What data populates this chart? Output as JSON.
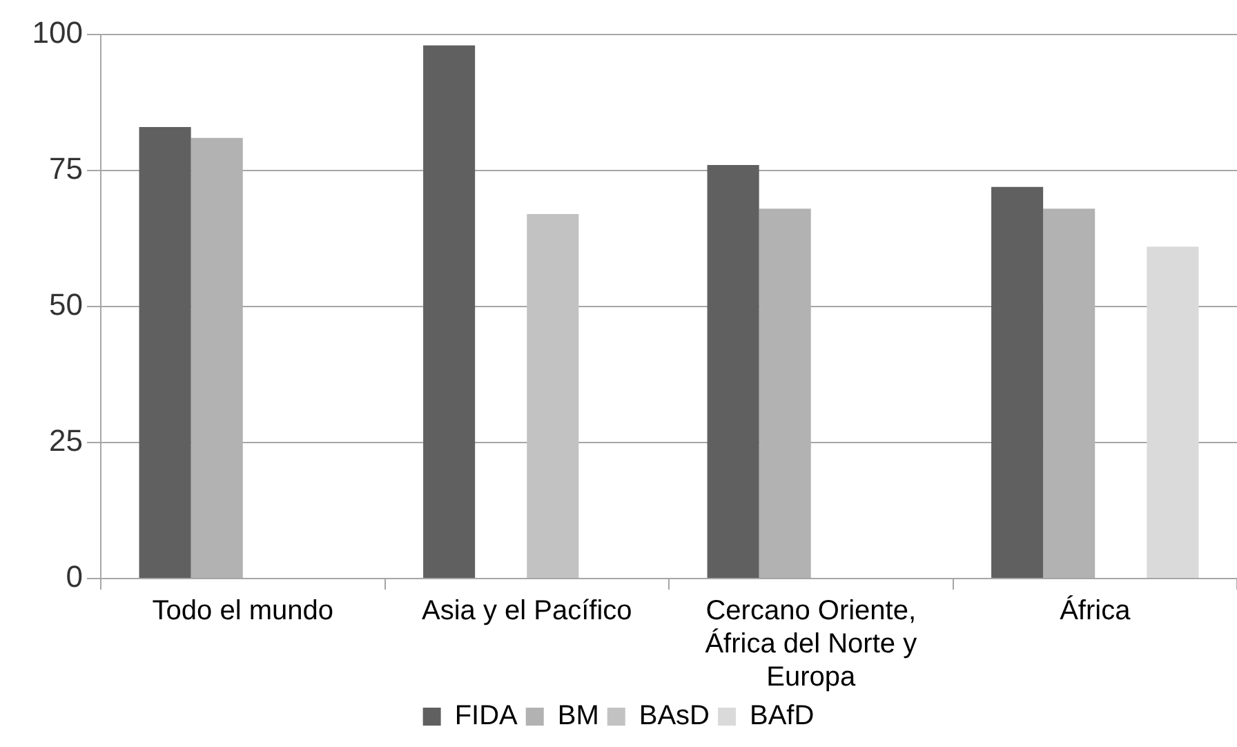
{
  "chart_data": {
    "type": "bar",
    "categories": [
      "Todo el mundo",
      "Asia y el Pacífico",
      "Cercano Oriente, África del Norte y Europa",
      "África"
    ],
    "series": [
      {
        "name": "FIDA",
        "color": "#606060",
        "values": [
          83,
          98,
          76,
          72
        ]
      },
      {
        "name": "BM",
        "color": "#b2b2b2",
        "values": [
          81,
          null,
          68,
          68
        ]
      },
      {
        "name": "BAsD",
        "color": "#c2c2c2",
        "values": [
          null,
          67,
          null,
          null
        ]
      },
      {
        "name": "BAfD",
        "color": "#dadada",
        "values": [
          null,
          null,
          null,
          61
        ]
      }
    ],
    "ylim": [
      0,
      100
    ],
    "yticks": [
      0,
      25,
      50,
      75,
      100
    ],
    "grid": "y",
    "legend": "bottom"
  }
}
